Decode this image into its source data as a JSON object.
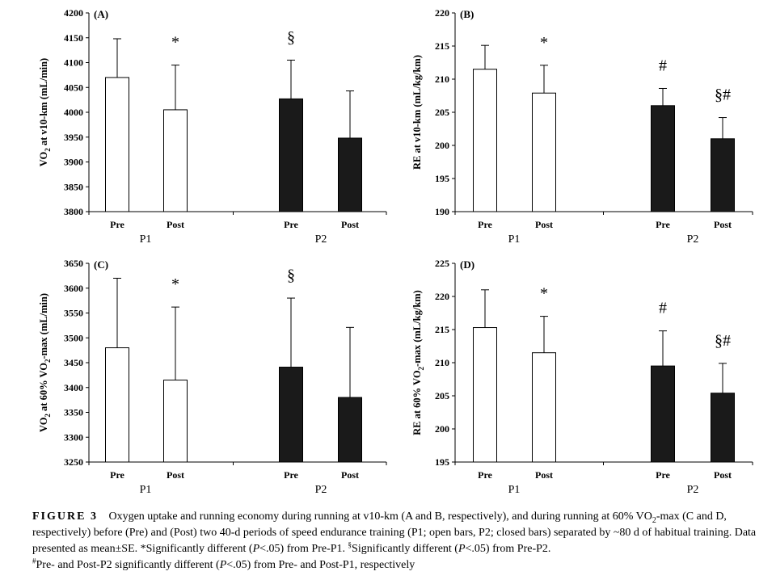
{
  "chart_data": [
    {
      "type": "bar",
      "panel_label": "(A)",
      "ylabel": {
        "main": "VO",
        "sub": "2",
        "rest": " at v10-km (mL/min)"
      },
      "ylim": [
        3800,
        4200
      ],
      "yticks": [
        3800,
        3850,
        3900,
        3950,
        4000,
        4050,
        4100,
        4150,
        4200
      ],
      "categories": [
        "Pre",
        "Post",
        "Pre",
        "Post"
      ],
      "groups": [
        "P1",
        "P2"
      ],
      "series": [
        {
          "values": [
            4070,
            4005,
            4027,
            3948
          ],
          "errors": [
            78,
            90,
            78,
            95
          ],
          "fills": [
            "open",
            "open",
            "closed",
            "closed"
          ]
        }
      ],
      "annotations": [
        "",
        "*",
        "§",
        ""
      ]
    },
    {
      "type": "bar",
      "panel_label": "(B)",
      "ylabel": {
        "main": "RE at v10-km (mL/kg/km)",
        "sub": "",
        "rest": ""
      },
      "ylim": [
        190,
        220
      ],
      "yticks": [
        190,
        195,
        200,
        205,
        210,
        215,
        220
      ],
      "categories": [
        "Pre",
        "Post",
        "Pre",
        "Post"
      ],
      "groups": [
        "P1",
        "P2"
      ],
      "series": [
        {
          "values": [
            211.5,
            207.9,
            206.0,
            201.0
          ],
          "errors": [
            3.6,
            4.2,
            2.6,
            3.2
          ],
          "fills": [
            "open",
            "open",
            "closed",
            "closed"
          ]
        }
      ],
      "annotations": [
        "",
        "*",
        "#",
        "§#"
      ]
    },
    {
      "type": "bar",
      "panel_label": "(C)",
      "ylabel": {
        "main": "VO",
        "sub": "2",
        "rest": " at 60% VO",
        "sub2": "2",
        "rest2": "-max (mL/min)"
      },
      "ylim": [
        3250,
        3650
      ],
      "yticks": [
        3250,
        3300,
        3350,
        3400,
        3450,
        3500,
        3550,
        3600,
        3650
      ],
      "categories": [
        "Pre",
        "Post",
        "Pre",
        "Post"
      ],
      "groups": [
        "P1",
        "P2"
      ],
      "series": [
        {
          "values": [
            3480,
            3415,
            3441,
            3380
          ],
          "errors": [
            140,
            147,
            139,
            141
          ],
          "fills": [
            "open",
            "open",
            "closed",
            "closed"
          ]
        }
      ],
      "annotations": [
        "",
        "*",
        "§",
        ""
      ]
    },
    {
      "type": "bar",
      "panel_label": "(D)",
      "ylabel": {
        "main": "RE at 60% VO",
        "sub": "2",
        "rest": "-max (mL/kg/km)"
      },
      "ylim": [
        195,
        225
      ],
      "yticks": [
        195,
        200,
        205,
        210,
        215,
        220,
        225
      ],
      "categories": [
        "Pre",
        "Post",
        "Pre",
        "Post"
      ],
      "groups": [
        "P1",
        "P2"
      ],
      "series": [
        {
          "values": [
            215.3,
            211.5,
            209.5,
            205.4
          ],
          "errors": [
            5.7,
            5.5,
            5.3,
            4.5
          ],
          "fills": [
            "open",
            "open",
            "closed",
            "closed"
          ]
        }
      ],
      "annotations": [
        "",
        "*",
        "#",
        "§#"
      ]
    }
  ],
  "caption": {
    "label": "FIGURE 3",
    "text1": "Oxygen uptake and running economy during running at v10-km (A and B, respectively), and during running at 60% VO",
    "sub1": "2",
    "text2": "-max (C and D, respectively) before (Pre) and (Post) two 40-d periods of speed endurance training (P1; open bars, P2; closed bars) separated by ~80 d of habitual training. Data presented as mean±SE. *Significantly different (",
    "p1": "P",
    "text3": "<.05) from Pre-P1. ",
    "sup_s": "§",
    "text4": "Significantly different (",
    "p2": "P",
    "text5": "<.05) from Pre-P2.",
    "sup_h": "#",
    "text6": "Pre- and Post-P2 significantly different (",
    "p3": "P",
    "text7": "<.05) from Pre- and Post-P1, respectively"
  },
  "colors": {
    "open_bar": "#ffffff",
    "closed_bar": "#1a1a1a",
    "axis": "#000000"
  }
}
